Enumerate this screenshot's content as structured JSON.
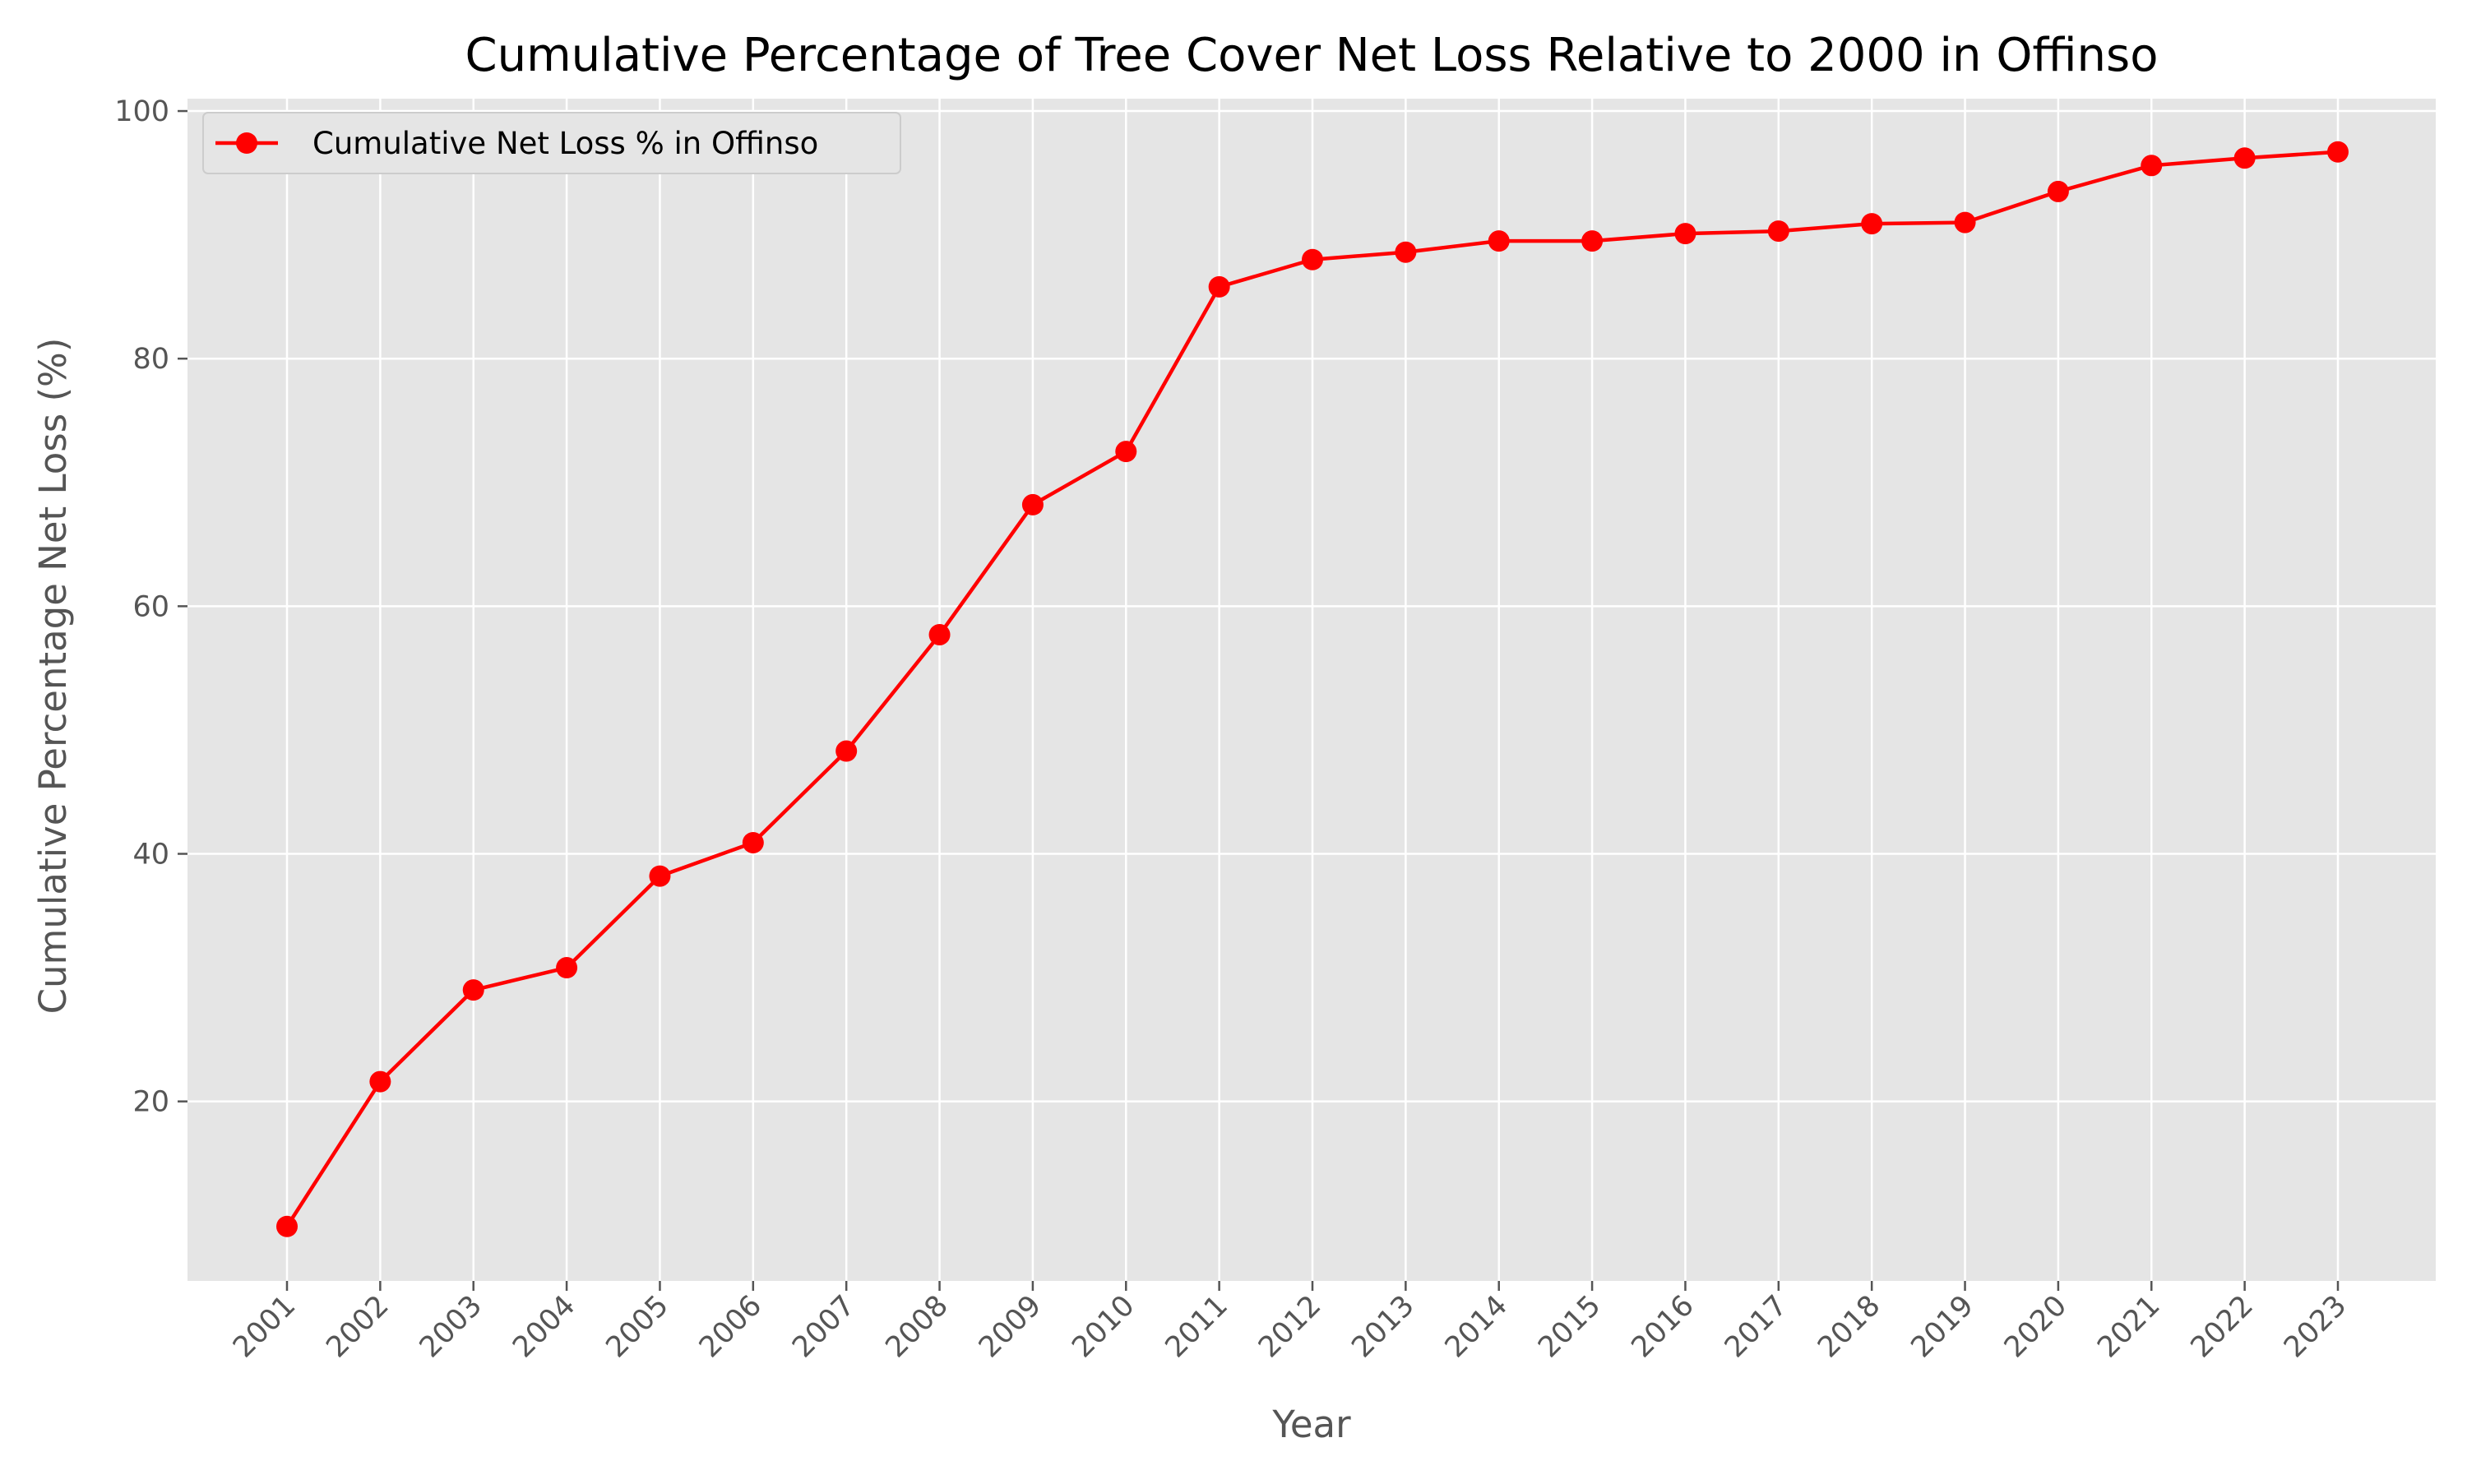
{
  "chart_data": {
    "type": "line",
    "title": "Cumulative Percentage of Tree Cover Net Loss Relative to 2000 in Offinso",
    "xlabel": "Year",
    "ylabel": "Cumulative Percentage Net Loss (%)",
    "categories": [
      "2001",
      "2002",
      "2003",
      "2004",
      "2005",
      "2006",
      "2007",
      "2008",
      "2009",
      "2010",
      "2011",
      "2012",
      "2013",
      "2014",
      "2015",
      "2016",
      "2017",
      "2018",
      "2019",
      "2020",
      "2021",
      "2022",
      "2023"
    ],
    "series": [
      {
        "name": "Cumulative Net Loss % in Offinso",
        "color": "#ff0000",
        "values": [
          9.9,
          21.6,
          29.0,
          30.8,
          38.2,
          40.9,
          48.3,
          57.7,
          68.2,
          72.5,
          85.8,
          88.0,
          88.6,
          89.5,
          89.5,
          90.1,
          90.3,
          90.9,
          91.0,
          93.5,
          95.6,
          96.2,
          96.7
        ]
      }
    ],
    "yticks": [
      20,
      40,
      60,
      80,
      100
    ],
    "ylim": [
      5.5,
      101
    ],
    "grid": true,
    "legend_position": "upper-left",
    "style": "ggplot",
    "colors": {
      "plot_background": "#e5e5e5",
      "grid": "#ffffff",
      "line": "#ff0000"
    }
  }
}
